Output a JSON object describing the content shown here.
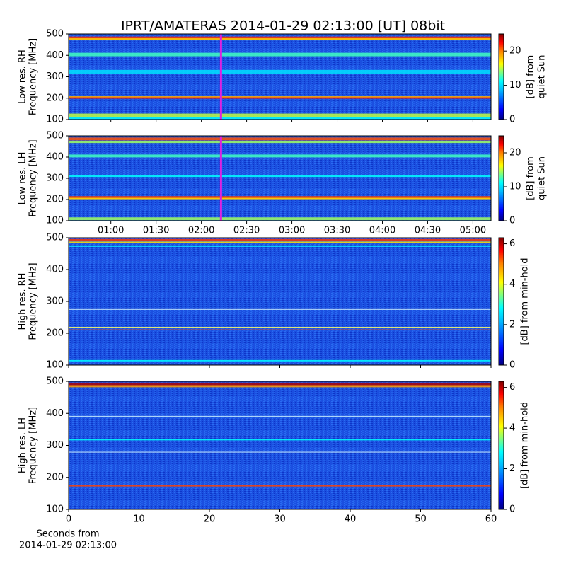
{
  "title": "IPRT/AMATERAS 2014-01-29 02:13:00 [UT]   08bit",
  "chart_data": [
    {
      "type": "heatmap",
      "ylabel": [
        "Low res. RH",
        "Frequency [MHz]"
      ],
      "ylim": [
        100,
        500
      ],
      "yticks": [
        100,
        200,
        300,
        400,
        500
      ],
      "xlim": [
        32,
        312
      ],
      "marker": 133,
      "clim": [
        0,
        25
      ],
      "cticks": [
        0,
        10,
        20
      ],
      "clabel": [
        "[dB] from",
        "quiet Sun"
      ]
    },
    {
      "type": "heatmap",
      "ylabel": [
        "Low res. LH",
        "Frequency [MHz]"
      ],
      "ylim": [
        100,
        500
      ],
      "yticks": [
        100,
        200,
        300,
        400,
        500
      ],
      "xlim": [
        32,
        312
      ],
      "marker": 133,
      "xticks": [
        {
          "value": 60,
          "label": "01:00"
        },
        {
          "value": 90,
          "label": "01:30"
        },
        {
          "value": 120,
          "label": "02:00"
        },
        {
          "value": 150,
          "label": "02:30"
        },
        {
          "value": 180,
          "label": "03:00"
        },
        {
          "value": 210,
          "label": "03:30"
        },
        {
          "value": 240,
          "label": "04:00"
        },
        {
          "value": 270,
          "label": "04:30"
        },
        {
          "value": 300,
          "label": "05:00"
        }
      ],
      "clim": [
        0,
        25
      ],
      "cticks": [
        0,
        10,
        20
      ],
      "clabel": [
        "[dB] from",
        "quiet Sun"
      ]
    },
    {
      "type": "heatmap",
      "ylabel": [
        "High res. RH",
        "Frequency [MHz]"
      ],
      "ylim": [
        100,
        500
      ],
      "yticks": [
        100,
        200,
        300,
        400,
        500
      ],
      "xlim": [
        0,
        60
      ],
      "clim": [
        0,
        6.3
      ],
      "cticks": [
        0,
        2,
        4,
        6
      ],
      "clabel": [
        "[dB] from min-hold"
      ]
    },
    {
      "type": "heatmap",
      "ylabel": [
        "High res. LH",
        "Frequency [MHz]"
      ],
      "ylim": [
        100,
        500
      ],
      "yticks": [
        100,
        200,
        300,
        400,
        500
      ],
      "xlim": [
        0,
        60
      ],
      "xticks": [
        0,
        10,
        20,
        30,
        40,
        50,
        60
      ],
      "xlabel": [
        "Seconds from",
        "2014-01-29 02:13:00"
      ],
      "clim": [
        0,
        6.3
      ],
      "cticks": [
        0,
        2,
        4,
        6
      ],
      "clabel": [
        "[dB] from min-hold"
      ]
    }
  ]
}
